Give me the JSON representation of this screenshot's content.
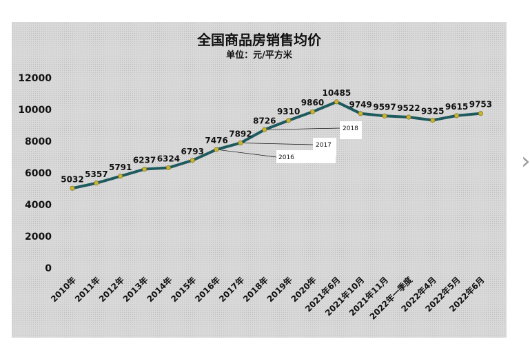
{
  "chart_data": {
    "type": "line",
    "title": "全国商品房销售均价",
    "subtitle": "单位：元/平方米",
    "categories": [
      "2010年",
      "2011年",
      "2012年",
      "2013年",
      "2014年",
      "2015年",
      "2016年",
      "2017年",
      "2018年",
      "2019年",
      "2020年",
      "2021年6月",
      "2021年10月",
      "2021年11月",
      "2022年一季度",
      "2022年4月",
      "2022年5月",
      "2022年6月"
    ],
    "series": [
      {
        "values": [
          5032,
          5357,
          5791,
          6237,
          6324,
          6793,
          7476,
          7892,
          8726,
          9310,
          9860,
          10485,
          9749,
          9597,
          9522,
          9325,
          9615,
          9753
        ]
      }
    ],
    "data_labels": [
      "5032",
      "5357",
      "5791",
      "6237",
      "6324",
      "6793",
      "7476",
      "7892",
      "8726",
      "9310",
      "9860",
      "10485",
      "9749",
      "9597",
      "9522",
      "9325",
      "9615",
      "9753"
    ],
    "ylim": [
      0,
      12000
    ],
    "yticks": [
      0,
      2000,
      4000,
      6000,
      8000,
      10000,
      12000
    ],
    "ytick_labels": [
      "0",
      "2000",
      "4000",
      "6000",
      "8000",
      "10000",
      "12000"
    ],
    "callouts": [
      {
        "text": "2018",
        "target_category": "2018年"
      },
      {
        "text": "2017",
        "target_category": "2017年"
      },
      {
        "text": "2016",
        "target_category": "2016年"
      }
    ],
    "grid": false,
    "legend": "none",
    "colors": {
      "line": "#1f5a5e",
      "marker": "#c8b432",
      "background": "#d9d9d9"
    }
  },
  "nav": {
    "next_icon": "chevron-right-icon"
  }
}
